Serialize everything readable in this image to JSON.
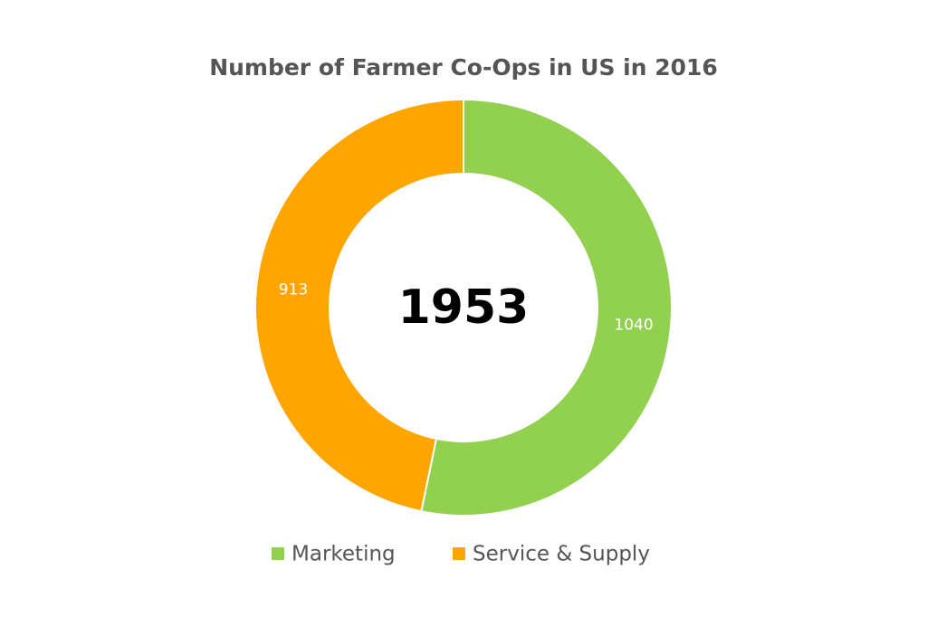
{
  "chart_data": {
    "type": "donut",
    "title": "Number of Farmer Co-Ops in US in 2016",
    "categories": [
      "Marketing",
      "Service & Supply"
    ],
    "values": [
      1040,
      913
    ],
    "colors": [
      "#92d050",
      "#ffa500"
    ],
    "total": 1953
  }
}
